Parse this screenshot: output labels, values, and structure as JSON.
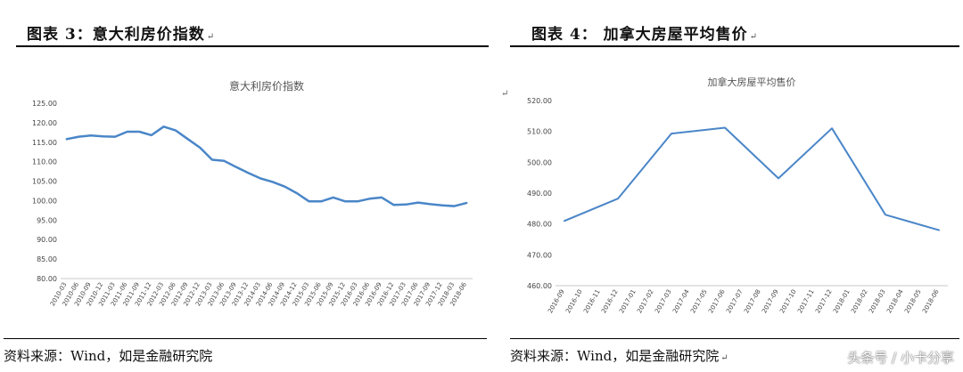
{
  "left": {
    "figure_title": "图表 3：意大利房价指数",
    "title_mark": "↵",
    "source": "资料来源：Wind，如是金融研究院"
  },
  "right": {
    "figure_title": "图表 4：  加拿大房屋平均售价",
    "title_mark": "↵",
    "source": "资料来源：Wind，如是金融研究院",
    "source_mark": "↵"
  },
  "side_mark": "↵",
  "watermark": "头条号 / 小卡分享",
  "chart_data": [
    {
      "type": "line",
      "title": "意大利房价指数",
      "categories": [
        "2010-03",
        "2010-06",
        "2010-09",
        "2010-12",
        "2011-03",
        "2011-06",
        "2011-09",
        "2011-12",
        "2012-03",
        "2012-06",
        "2012-09",
        "2012-12",
        "2013-03",
        "2013-06",
        "2013-09",
        "2013-12",
        "2014-03",
        "2014-06",
        "2014-09",
        "2014-12",
        "2015-03",
        "2015-06",
        "2015-09",
        "2015-12",
        "2016-03",
        "2016-06",
        "2016-09",
        "2016-12",
        "2017-03",
        "2017-06",
        "2017-09",
        "2017-12",
        "2018-03",
        "2018-06"
      ],
      "series": [
        {
          "values": [
            115.8,
            116.4,
            116.7,
            116.5,
            116.4,
            117.7,
            117.7,
            116.8,
            119.0,
            118.0,
            115.8,
            113.6,
            110.5,
            110.2,
            108.6,
            107.1,
            105.7,
            104.8,
            103.6,
            101.9,
            99.8,
            99.8,
            100.8,
            99.8,
            99.8,
            100.5,
            100.8,
            98.9,
            99.0,
            99.5,
            99.1,
            98.8,
            98.6,
            99.4
          ],
          "color": "#4a86c8"
        }
      ],
      "ylim": [
        80,
        125
      ],
      "yticks": [
        "80.00",
        "85.00",
        "90.00",
        "95.00",
        "100.00",
        "105.00",
        "110.00",
        "115.00",
        "120.00",
        "125.00"
      ],
      "grid": false,
      "legend": false
    },
    {
      "type": "line",
      "title": "加拿大房屋平均售价",
      "categories": [
        "2016-09",
        "2016-10",
        "2016-11",
        "2016-12",
        "2017-01",
        "2017-02",
        "2017-03",
        "2017-04",
        "2017-05",
        "2017-06",
        "2017-07",
        "2017-08",
        "2017-09",
        "2017-10",
        "2017-11",
        "2017-12",
        "2018-01",
        "2018-02",
        "2018-03",
        "2018-04",
        "2018-05",
        "2018-06"
      ],
      "series": [
        {
          "values": [
            481.0,
            null,
            null,
            488.2,
            null,
            null,
            509.3,
            null,
            null,
            511.2,
            null,
            null,
            494.8,
            null,
            null,
            511.0,
            null,
            null,
            483.0,
            null,
            null,
            478.0
          ],
          "color": "#4a86c8"
        }
      ],
      "ylim": [
        460,
        520
      ],
      "yticks": [
        "460.00",
        "470.00",
        "480.00",
        "490.00",
        "500.00",
        "510.00",
        "520.00"
      ],
      "grid": false,
      "legend": false
    }
  ]
}
